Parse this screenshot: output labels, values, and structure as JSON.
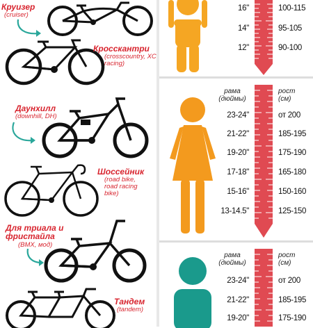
{
  "bikes": [
    {
      "name": "Круизер",
      "sub": "(cruiser)"
    },
    {
      "name": "Кросскантри",
      "sub": "(crosscountry, XC racing)"
    },
    {
      "name": "Даунхилл",
      "sub": "(downhill, DH)"
    },
    {
      "name": "Шоссейник",
      "sub": "(road bike, road racing bike)"
    },
    {
      "name": "Для триала и фристайла",
      "sub": "(BMX, мод)"
    },
    {
      "name": "Тандем",
      "sub": "(tandem)"
    }
  ],
  "sections": [
    {
      "figure": "child-raised-arms",
      "color": "#f5a623",
      "rows": [
        {
          "frame": "16\"",
          "height": "100-115"
        },
        {
          "frame": "14\"",
          "height": "95-105"
        },
        {
          "frame": "12\"",
          "height": "90-100"
        }
      ]
    },
    {
      "figure": "woman",
      "color": "#f39a1e",
      "head_frame": "рама (дюймы)",
      "head_height": "рост (см)",
      "rows": [
        {
          "frame": "23-24\"",
          "height": "от 200"
        },
        {
          "frame": "21-22\"",
          "height": "185-195"
        },
        {
          "frame": "19-20\"",
          "height": "175-190"
        },
        {
          "frame": "17-18\"",
          "height": "165-180"
        },
        {
          "frame": "15-16\"",
          "height": "150-160"
        },
        {
          "frame": "13-14.5\"",
          "height": "125-150"
        }
      ]
    },
    {
      "figure": "man",
      "color": "#1a9a8c",
      "head_frame": "рама (дюймы)",
      "head_height": "рост (см)",
      "rows": [
        {
          "frame": "23-24\"",
          "height": "от 200"
        },
        {
          "frame": "21-22\"",
          "height": "185-195"
        },
        {
          "frame": "19-20\"",
          "height": "175-190"
        }
      ]
    }
  ],
  "colors": {
    "accent": "#d8252f",
    "arrow": "#2aa79b",
    "ruler": "#e04a52",
    "bike": "#111111"
  }
}
